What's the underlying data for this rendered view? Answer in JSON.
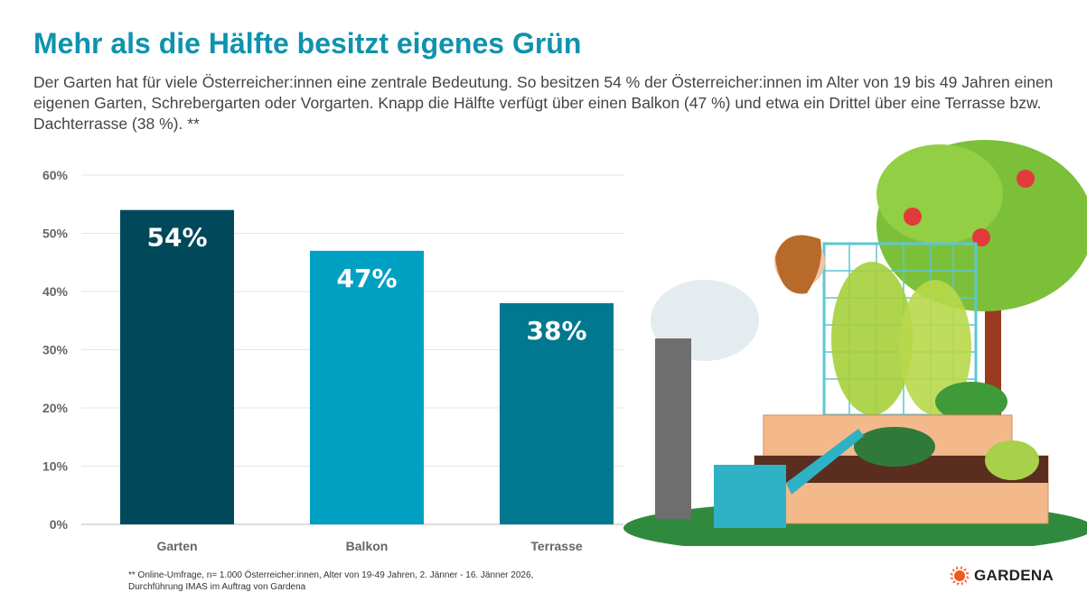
{
  "header": {
    "title": "Mehr als die Hälfte besitzt eigenes Grün",
    "subtitle": "Der Garten hat für viele Österreicher:innen eine zentrale Bedeutung. So besitzen 54 % der Österreicher:innen im Alter von 19 bis 49 Jahren einen eigenen Garten, Schrebergarten oder Vorgarten. Knapp die Hälfte verfügt über einen Balkon (47 %) und etwa ein Drittel über eine Terrasse bzw. Dachterrasse (38 %). **"
  },
  "chart_data": {
    "type": "bar",
    "categories": [
      "Garten",
      "Balkon",
      "Terrasse"
    ],
    "values": [
      54,
      47,
      38
    ],
    "data_labels": [
      "54%",
      "47%",
      "38%"
    ],
    "bar_colors": [
      "#00485a",
      "#00a0c2",
      "#00788f"
    ],
    "ylim": [
      0,
      60
    ],
    "yticks": [
      0,
      10,
      20,
      30,
      40,
      50,
      60
    ],
    "ytick_labels": [
      "0%",
      "10%",
      "20%",
      "30%",
      "40%",
      "50%",
      "60%"
    ],
    "grid": true,
    "xlabel": "",
    "ylabel": ""
  },
  "footnote": {
    "line1": "** Online-Umfrage, n= 1.000 Österreicher:innen, Alter von 19-49 Jahren, 2. Jänner - 16. Jänner 2026,",
    "line2": "Durchführung IMAS  im Auftrag von Gardena"
  },
  "logo": {
    "text": "GARDENA",
    "color": "#f05a22"
  },
  "colors": {
    "title": "#0e93ad"
  }
}
